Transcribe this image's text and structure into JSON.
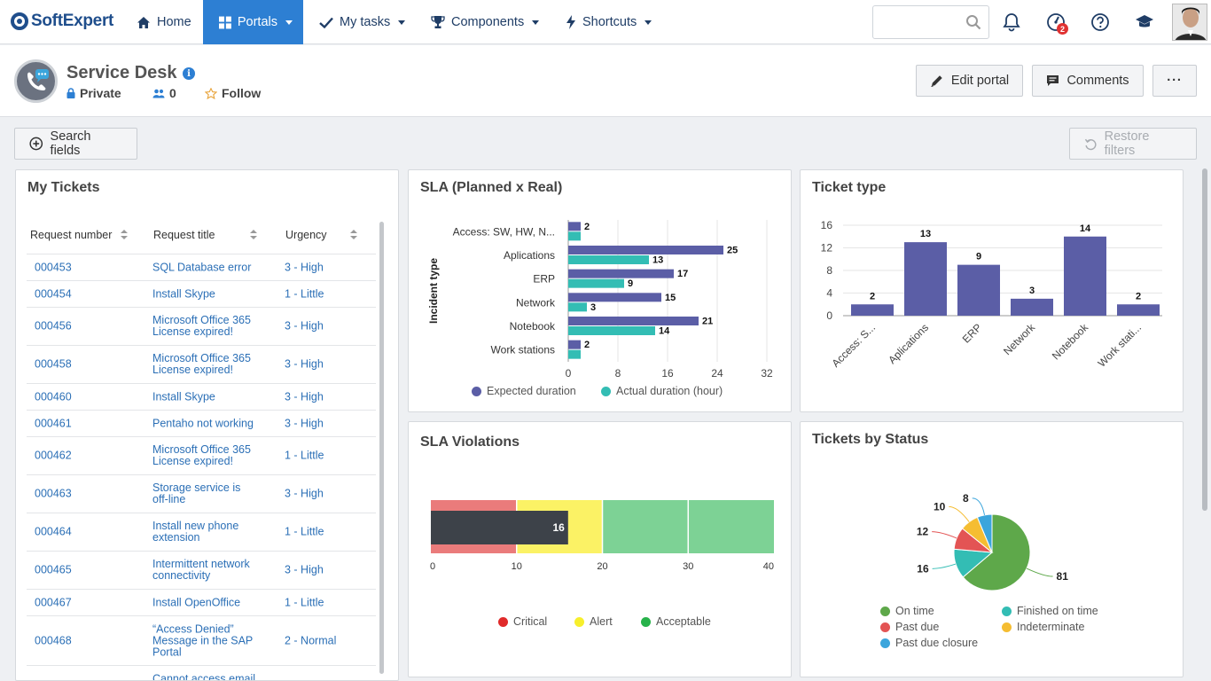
{
  "nav": {
    "brand": "SoftExpert",
    "home": "Home",
    "portals": "Portals",
    "my_tasks": "My tasks",
    "components": "Components",
    "shortcuts": "Shortcuts",
    "search_placeholder": "",
    "task_badge": "2"
  },
  "header": {
    "title": "Service Desk",
    "info": "i",
    "privacy": "Private",
    "members": "0",
    "follow": "Follow",
    "edit_portal": "Edit portal",
    "comments": "Comments",
    "more": "···"
  },
  "toolbar": {
    "search_fields": "Search fields",
    "restore_filters": "Restore filters"
  },
  "my_tickets": {
    "title": "My Tickets",
    "columns": [
      "Request number",
      "Request title",
      "Urgency"
    ],
    "rows": [
      {
        "number": "000453",
        "title": "SQL Database error",
        "urgency": "3 - High"
      },
      {
        "number": "000454",
        "title": "Install Skype",
        "urgency": "1 - Little"
      },
      {
        "number": "000456",
        "title": "Microsoft Office 365 License expired!",
        "urgency": "3 - High"
      },
      {
        "number": "000458",
        "title": "Microsoft Office 365 License expired!",
        "urgency": "3 - High"
      },
      {
        "number": "000460",
        "title": "Install Skype",
        "urgency": "3 - High"
      },
      {
        "number": "000461",
        "title": "Pentaho not working",
        "urgency": "3 - High"
      },
      {
        "number": "000462",
        "title": "Microsoft Office 365 License expired!",
        "urgency": "1 - Little"
      },
      {
        "number": "000463",
        "title": "Storage service is off-line",
        "urgency": "3 - High"
      },
      {
        "number": "000464",
        "title": "Install new phone extension",
        "urgency": "1 - Little"
      },
      {
        "number": "000465",
        "title": "Intermittent network connectivity",
        "urgency": "3 - High"
      },
      {
        "number": "000467",
        "title": "Install OpenOffice",
        "urgency": "1 - Little"
      },
      {
        "number": "000468",
        "title": "“Access Denied” Message in the SAP Portal",
        "urgency": "2 - Normal"
      },
      {
        "number": "",
        "title": "Cannot access email",
        "urgency": ""
      }
    ]
  },
  "colors": {
    "expected": "#5b5ea6",
    "actual": "#33bdb4",
    "critical": "#ea7b7b",
    "alert": "#fbf265",
    "acceptable": "#7dd295",
    "on_time": "#5ea84a",
    "finished_on_time": "#33bdb4",
    "past_due": "#e35454",
    "indeterminate": "#f5bd32",
    "past_due_closure": "#3ba5dc",
    "link": "#2b6fb6"
  },
  "chart_data": [
    {
      "id": "sla",
      "type": "bar",
      "orientation": "horizontal",
      "title": "SLA (Planned x Real)",
      "ylabel": "Incident type",
      "xlabel": "",
      "categories": [
        "Access: SW, HW, N...",
        "Aplications",
        "ERP",
        "Network",
        "Notebook",
        "Work stations"
      ],
      "series": [
        {
          "name": "Expected duration",
          "values": [
            2,
            25,
            17,
            15,
            21,
            2
          ]
        },
        {
          "name": "Actual duration (hour)",
          "values": [
            2,
            13,
            9,
            3,
            14,
            2
          ]
        }
      ],
      "xlim": [
        0,
        32
      ],
      "ticks": [
        0,
        8,
        16,
        24,
        32
      ],
      "data_labels": [
        "2",
        "",
        "25",
        "13",
        "17",
        "9",
        "15",
        "3",
        "21",
        "14",
        "2",
        ""
      ]
    },
    {
      "id": "ticket_type",
      "type": "bar",
      "title": "Ticket type",
      "categories": [
        "Access: S...",
        "Aplications",
        "ERP",
        "Network",
        "Notebook",
        "Work stati..."
      ],
      "values": [
        2,
        13,
        9,
        3,
        14,
        2
      ],
      "ylim": [
        0,
        16
      ],
      "ticks": [
        0,
        4,
        8,
        12,
        16
      ]
    },
    {
      "id": "sla_violations",
      "type": "bar",
      "subtype": "bullet",
      "title": "SLA Violations",
      "value": 16,
      "bands": [
        {
          "name": "Critical",
          "from": 0,
          "to": 10
        },
        {
          "name": "Alert",
          "from": 10,
          "to": 20
        },
        {
          "name": "Acceptable",
          "from": 20,
          "to": 40
        }
      ],
      "xlim": [
        0,
        40
      ],
      "ticks": [
        0,
        10,
        20,
        30,
        40
      ],
      "legend": [
        "Critical",
        "Alert",
        "Acceptable"
      ]
    },
    {
      "id": "tickets_by_status",
      "type": "pie",
      "title": "Tickets by Status",
      "slices": [
        {
          "name": "On time",
          "value": 81
        },
        {
          "name": "Finished on time",
          "value": 16
        },
        {
          "name": "Past due",
          "value": 12
        },
        {
          "name": "Indeterminate",
          "value": 10
        },
        {
          "name": "Past due closure",
          "value": 8
        }
      ],
      "legend": [
        "On time",
        "Finished on time",
        "Past due",
        "Indeterminate",
        "Past due closure"
      ]
    }
  ]
}
